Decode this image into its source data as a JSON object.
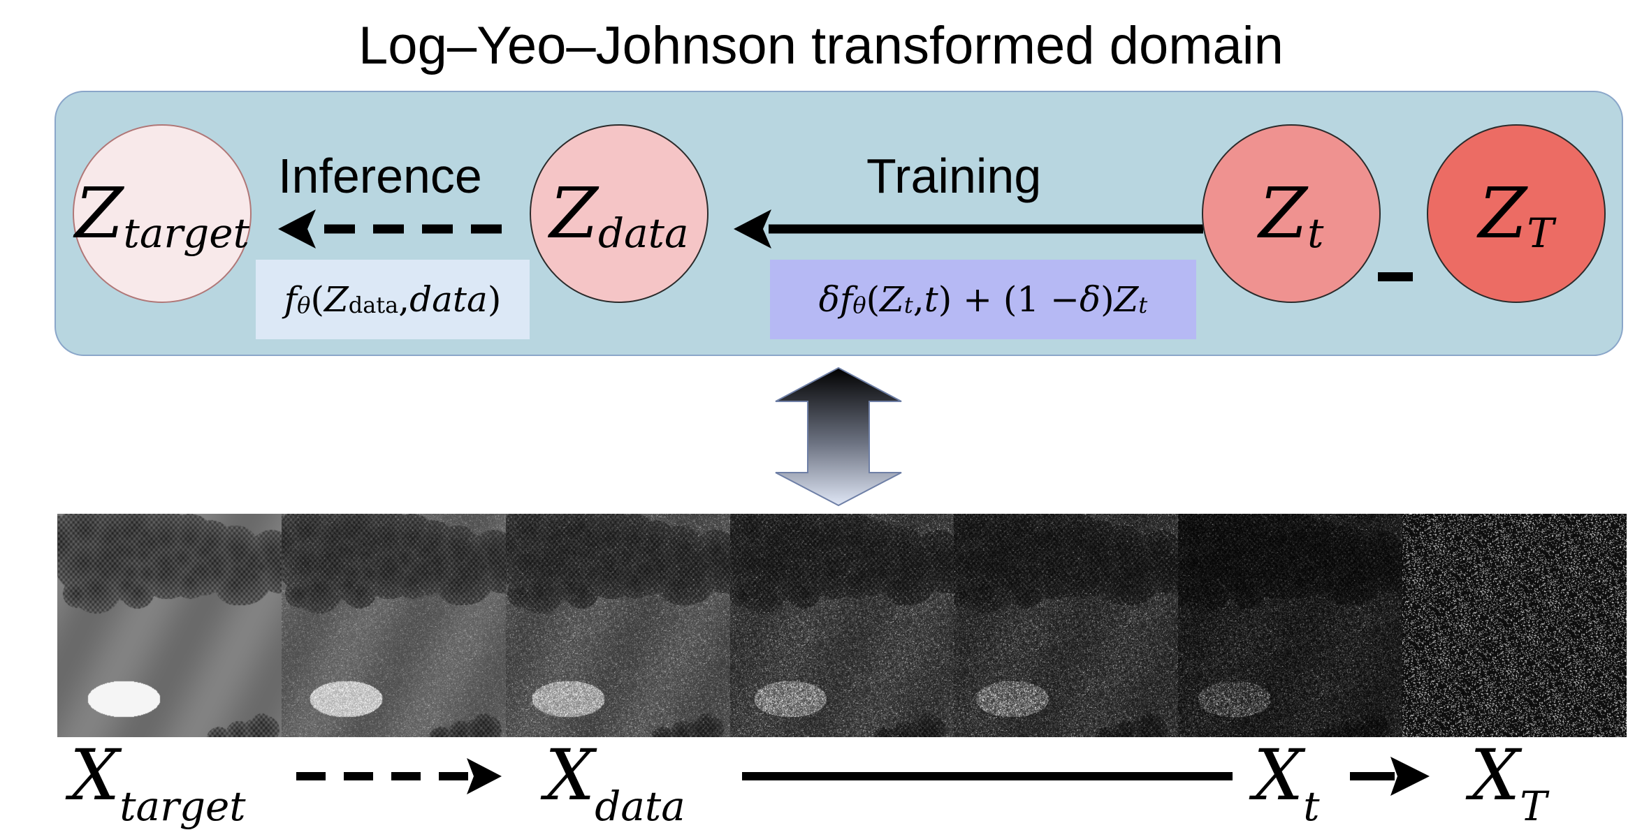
{
  "title": "Log–Yeo–Johnson transformed domain",
  "colors": {
    "panel_bg": "#b8d6e0",
    "panel_border": "#8aa6c9",
    "z_target_fill": "#f8e9ea",
    "z_data_fill": "#f5c5c6",
    "z_t_fill": "#ef9290",
    "z_T_fill": "#ec6c64",
    "inference_box": "#dce8f6",
    "training_box": "#b6b9f4"
  },
  "nodes": {
    "z_target": {
      "base": "Z",
      "sub": "target"
    },
    "z_data": {
      "base": "Z",
      "sub": "data"
    },
    "z_t": {
      "base": "Z",
      "sub": "t"
    },
    "z_T": {
      "base": "Z",
      "sub": "T"
    }
  },
  "labels": {
    "inference": "Inference",
    "training": "Training",
    "dash_symbol": "-"
  },
  "formulas": {
    "inference": {
      "f": "f",
      "theta": "θ",
      "open": "(",
      "Z": "Z",
      "Z_sub": "data",
      "sep": ", ",
      "data": "data",
      "close": ")"
    },
    "training": {
      "delta1": "δ",
      "f": " f",
      "theta": "θ",
      "open": "(",
      "Z": "Z",
      "Z_sub": "t",
      "mid": ", ",
      "t": "t",
      "close": ") + (1 − ",
      "delta2": "δ",
      "close2": ") ",
      "Z2": "Z",
      "Z2_sub": "t"
    }
  },
  "image_strip": {
    "noise_levels": [
      0.0,
      0.18,
      0.32,
      0.52,
      0.62,
      0.82,
      0.96
    ]
  },
  "bottom_labels": {
    "x_target": {
      "base": "X",
      "sub": "target"
    },
    "x_data": {
      "base": "X",
      "sub": "data"
    },
    "x_t": {
      "base": "X",
      "sub": "t"
    },
    "x_T": {
      "base": "X",
      "sub": "T"
    }
  }
}
